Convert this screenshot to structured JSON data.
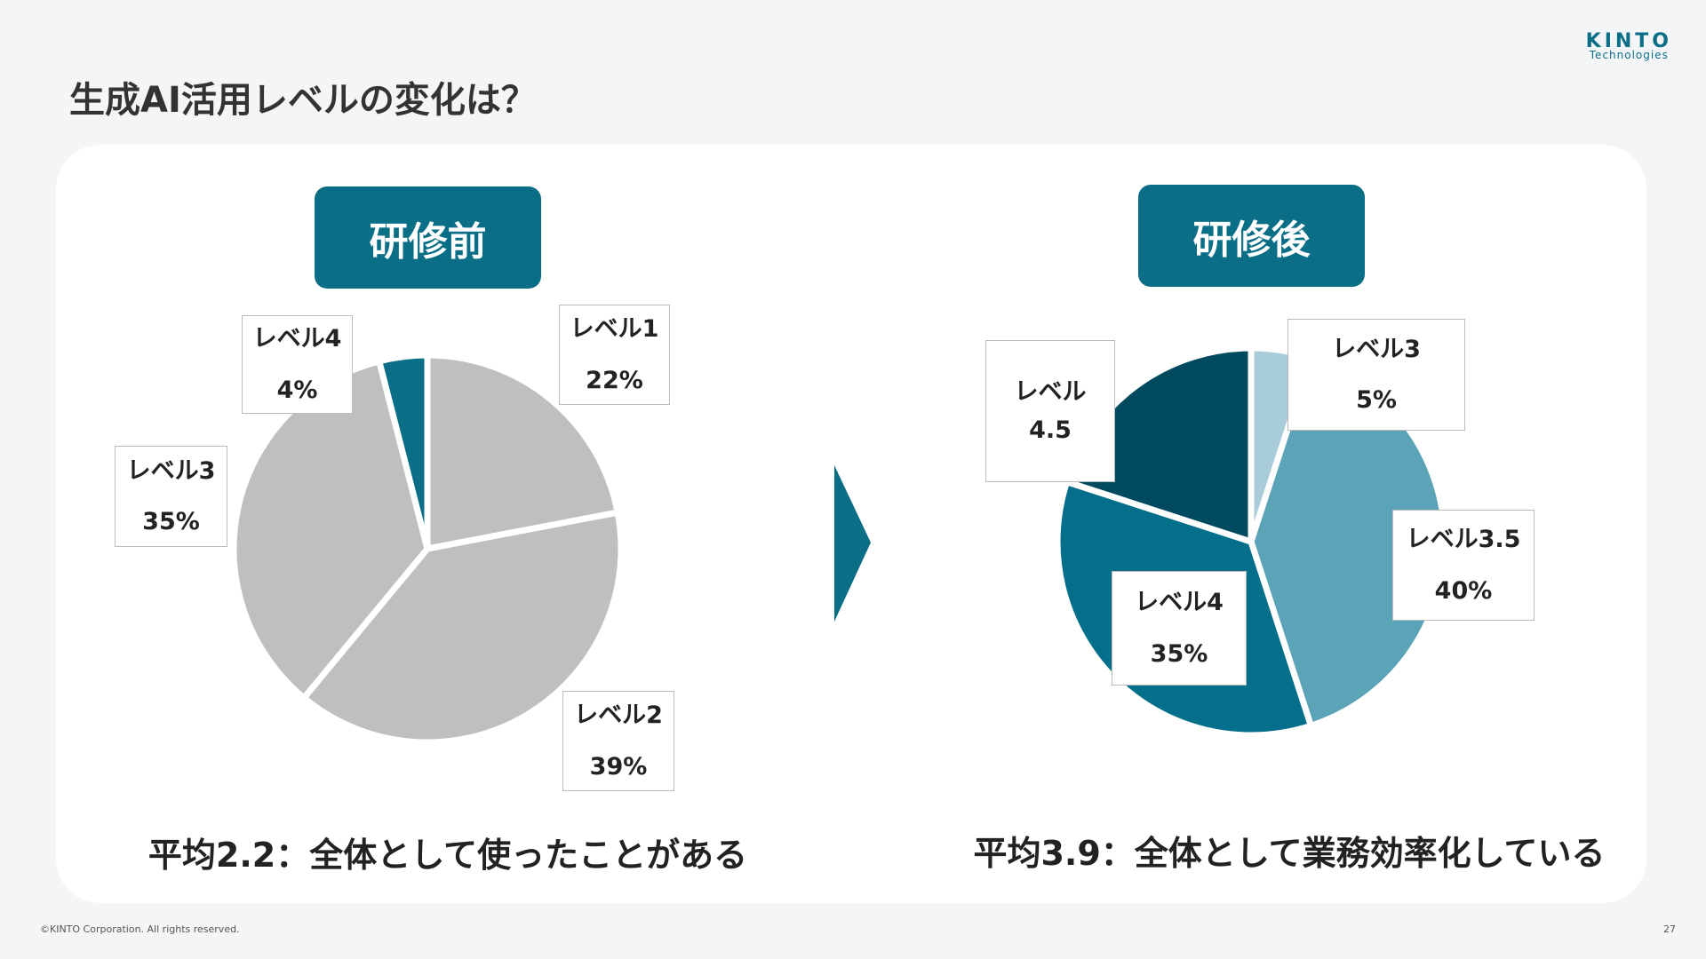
{
  "header": {
    "title": "生成AI活用レベルの変化は？",
    "logo": "KINTO",
    "logo_sub": "Technologies"
  },
  "footer": {
    "copyright": "©KINTO Corporation. All rights reserved.",
    "page": "27"
  },
  "chart_data": [
    {
      "type": "pie",
      "title": "研修前",
      "caption": "平均2.2：全体として使ったことがある",
      "categories": [
        "レベル1",
        "レベル2",
        "レベル3",
        "レベル4"
      ],
      "values": [
        22,
        39,
        35,
        4
      ],
      "value_labels": [
        "22%",
        "39%",
        "35%",
        "4%"
      ],
      "colors": [
        "#bfbfbf",
        "#bfbfbf",
        "#bfbfbf",
        "#0a6e87"
      ]
    },
    {
      "type": "pie",
      "title": "研修後",
      "caption": "平均3.9：全体として業務効率化している",
      "categories": [
        "レベル3",
        "レベル3.5",
        "レベル4",
        "レベル\n4.5"
      ],
      "values": [
        5,
        40,
        35,
        20
      ],
      "value_labels": [
        "5%",
        "40%",
        "35%",
        null
      ],
      "colors": [
        "#a8cdd8",
        "#5ba3b7",
        "#036f8b",
        "#004a5f"
      ]
    }
  ]
}
